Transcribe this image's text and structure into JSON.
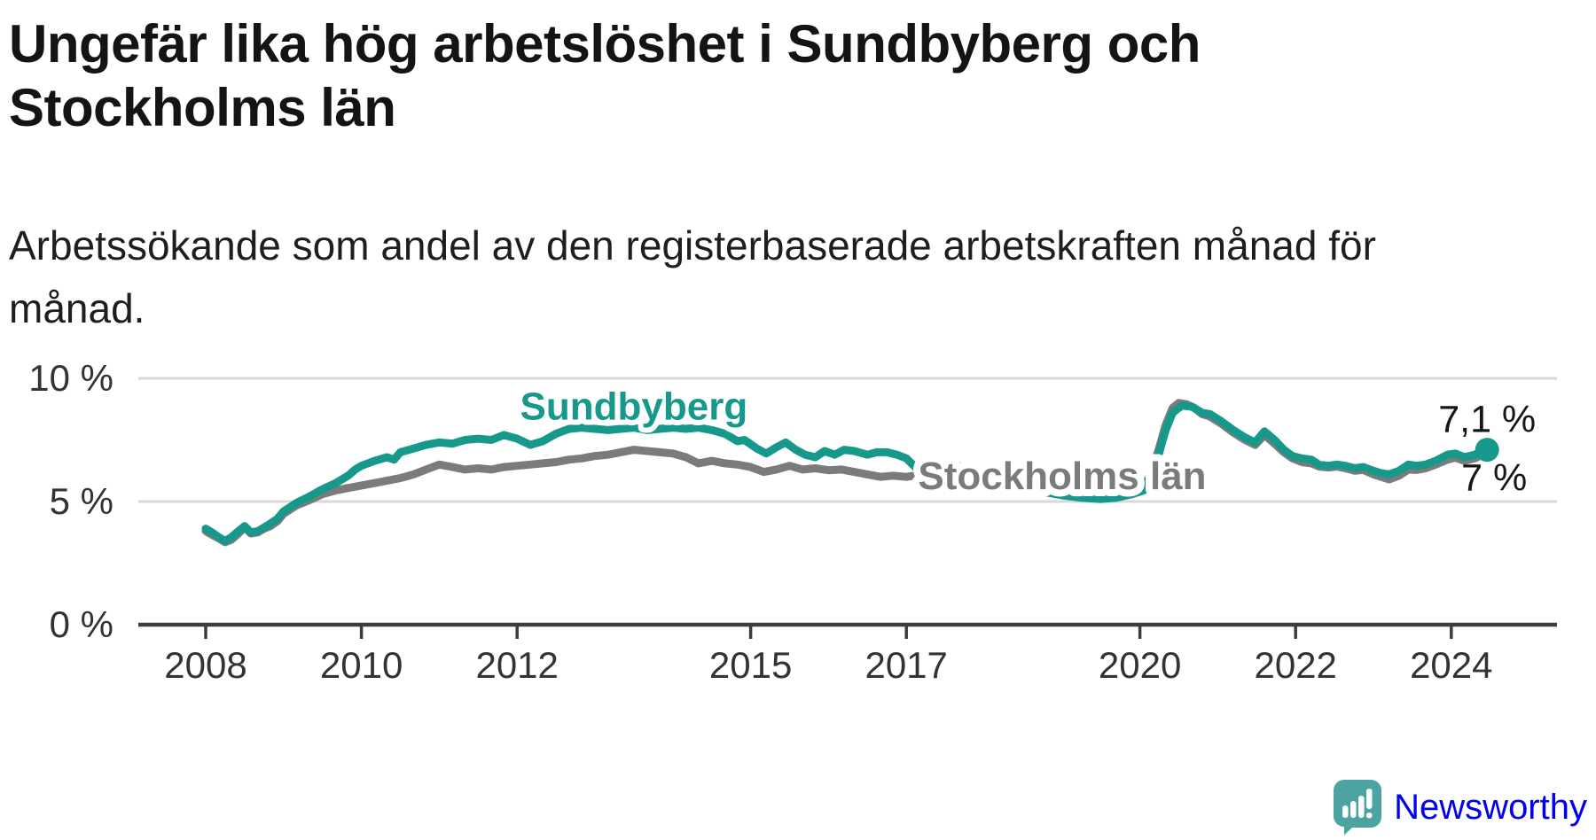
{
  "header": {
    "title": "Ungefär lika hög arbetslöshet i Sundbyberg och Stockholms län",
    "subtitle": "Arbetssökande som andel av den registerbaserade arbetskraften månad för månad."
  },
  "footer": {
    "brand": "Newsworthy",
    "icon": "speech-bubble-bar-chart"
  },
  "colors": {
    "sundbyberg": "#16998a",
    "stockholm": "#7b7b7b",
    "grid": "#d9d9d9",
    "axis": "#3c3c3c",
    "tick_text": "#333333",
    "value_text": "#161616",
    "logo": "#4ba3a2"
  },
  "chart_data": {
    "type": "line",
    "title": "Ungefär lika hög arbetslöshet i Sundbyberg och Stockholms län",
    "subtitle": "Arbetssökande som andel av den registerbaserade arbetskraften månad för månad.",
    "unit": "%",
    "granularity": "monthly",
    "xlim": [
      2007.1,
      2025.4
    ],
    "ylim": [
      0,
      10
    ],
    "grid": "horizontal",
    "legend_position": "inline-labels",
    "x_ticks": [
      {
        "year": 2008,
        "label": "2008"
      },
      {
        "year": 2010,
        "label": "2010"
      },
      {
        "year": 2012,
        "label": "2012"
      },
      {
        "year": 2015,
        "label": "2015"
      },
      {
        "year": 2017,
        "label": "2017"
      },
      {
        "year": 2020,
        "label": "2020"
      },
      {
        "year": 2022,
        "label": "2022"
      },
      {
        "year": 2024,
        "label": "2024"
      }
    ],
    "y_ticks": [
      {
        "value": 0,
        "label": "0 %"
      },
      {
        "value": 5,
        "label": "5 %"
      },
      {
        "value": 10,
        "label": "10 %"
      }
    ],
    "series": [
      {
        "name": "Stockholms län",
        "color_key": "stockholm",
        "label": {
          "text": "Stockholms län",
          "t": 2017.15,
          "v": 5.5,
          "anchor": "start",
          "halo": 16
        },
        "end_label": {
          "text": "7 %",
          "dx": 8,
          "dy": 43,
          "anchor": "middle"
        },
        "end_dot": false,
        "points": [
          [
            2008.0,
            3.8
          ],
          [
            2008.08,
            3.65
          ],
          [
            2008.17,
            3.5
          ],
          [
            2008.25,
            3.35
          ],
          [
            2008.33,
            3.45
          ],
          [
            2008.42,
            3.7
          ],
          [
            2008.5,
            3.95
          ],
          [
            2008.58,
            3.7
          ],
          [
            2008.67,
            3.75
          ],
          [
            2008.75,
            3.9
          ],
          [
            2008.83,
            4.0
          ],
          [
            2008.92,
            4.2
          ],
          [
            2009.0,
            4.5
          ],
          [
            2009.17,
            4.85
          ],
          [
            2009.33,
            5.05
          ],
          [
            2009.5,
            5.3
          ],
          [
            2009.67,
            5.45
          ],
          [
            2009.83,
            5.55
          ],
          [
            2010.0,
            5.65
          ],
          [
            2010.17,
            5.75
          ],
          [
            2010.33,
            5.85
          ],
          [
            2010.5,
            5.95
          ],
          [
            2010.67,
            6.1
          ],
          [
            2010.83,
            6.3
          ],
          [
            2011.0,
            6.5
          ],
          [
            2011.17,
            6.4
          ],
          [
            2011.33,
            6.3
          ],
          [
            2011.5,
            6.35
          ],
          [
            2011.67,
            6.3
          ],
          [
            2011.83,
            6.4
          ],
          [
            2012.0,
            6.45
          ],
          [
            2012.17,
            6.5
          ],
          [
            2012.33,
            6.55
          ],
          [
            2012.5,
            6.6
          ],
          [
            2012.67,
            6.7
          ],
          [
            2012.83,
            6.75
          ],
          [
            2013.0,
            6.85
          ],
          [
            2013.17,
            6.9
          ],
          [
            2013.33,
            7.0
          ],
          [
            2013.5,
            7.1
          ],
          [
            2013.67,
            7.05
          ],
          [
            2013.83,
            7.0
          ],
          [
            2014.0,
            6.95
          ],
          [
            2014.17,
            6.8
          ],
          [
            2014.33,
            6.55
          ],
          [
            2014.5,
            6.65
          ],
          [
            2014.67,
            6.55
          ],
          [
            2014.83,
            6.5
          ],
          [
            2015.0,
            6.4
          ],
          [
            2015.17,
            6.2
          ],
          [
            2015.33,
            6.3
          ],
          [
            2015.5,
            6.45
          ],
          [
            2015.67,
            6.3
          ],
          [
            2015.83,
            6.35
          ],
          [
            2016.0,
            6.27
          ],
          [
            2016.17,
            6.3
          ],
          [
            2016.33,
            6.2
          ],
          [
            2016.5,
            6.1
          ],
          [
            2016.67,
            6.0
          ],
          [
            2016.83,
            6.05
          ],
          [
            2017.0,
            6.0
          ],
          [
            2017.17,
            6.08
          ],
          [
            2017.33,
            6.0
          ],
          [
            2017.6,
            5.95
          ],
          [
            2017.8,
            5.9
          ],
          [
            2018.0,
            5.8
          ],
          [
            2018.25,
            5.65
          ],
          [
            2018.5,
            5.5
          ],
          [
            2018.75,
            5.4
          ],
          [
            2019.0,
            5.3
          ],
          [
            2019.25,
            5.25
          ],
          [
            2019.5,
            5.25
          ],
          [
            2019.7,
            5.3
          ],
          [
            2019.9,
            5.4
          ],
          [
            2020.05,
            5.55
          ],
          [
            2020.15,
            6.2
          ],
          [
            2020.25,
            7.2
          ],
          [
            2020.33,
            8.1
          ],
          [
            2020.42,
            8.8
          ],
          [
            2020.5,
            9.0
          ],
          [
            2020.6,
            8.95
          ],
          [
            2020.7,
            8.8
          ],
          [
            2020.8,
            8.55
          ],
          [
            2020.9,
            8.45
          ],
          [
            2021.05,
            8.15
          ],
          [
            2021.2,
            7.8
          ],
          [
            2021.35,
            7.5
          ],
          [
            2021.48,
            7.3
          ],
          [
            2021.6,
            7.7
          ],
          [
            2021.73,
            7.35
          ],
          [
            2021.85,
            7.0
          ],
          [
            2021.96,
            6.75
          ],
          [
            2022.08,
            6.6
          ],
          [
            2022.2,
            6.55
          ],
          [
            2022.3,
            6.42
          ],
          [
            2022.42,
            6.38
          ],
          [
            2022.53,
            6.42
          ],
          [
            2022.64,
            6.35
          ],
          [
            2022.76,
            6.25
          ],
          [
            2022.87,
            6.28
          ],
          [
            2023.0,
            6.1
          ],
          [
            2023.1,
            6.0
          ],
          [
            2023.2,
            5.9
          ],
          [
            2023.33,
            6.05
          ],
          [
            2023.45,
            6.3
          ],
          [
            2023.55,
            6.28
          ],
          [
            2023.67,
            6.35
          ],
          [
            2023.8,
            6.5
          ],
          [
            2023.95,
            6.7
          ],
          [
            2024.05,
            6.78
          ],
          [
            2024.17,
            6.65
          ],
          [
            2024.3,
            6.75
          ],
          [
            2024.46,
            7.0
          ]
        ]
      },
      {
        "name": "Sundbyberg",
        "color_key": "sundbyberg",
        "label": {
          "text": "Sundbyberg",
          "t": 2013.5,
          "v": 8.33,
          "anchor": "middle",
          "halo": 12
        },
        "end_label": {
          "text": "7,1 %",
          "dx": 0,
          "dy": -20,
          "anchor": "middle"
        },
        "end_dot": true,
        "points": [
          [
            2008.0,
            3.9
          ],
          [
            2008.08,
            3.75
          ],
          [
            2008.17,
            3.55
          ],
          [
            2008.25,
            3.4
          ],
          [
            2008.33,
            3.55
          ],
          [
            2008.42,
            3.8
          ],
          [
            2008.5,
            4.0
          ],
          [
            2008.58,
            3.75
          ],
          [
            2008.67,
            3.8
          ],
          [
            2008.75,
            3.95
          ],
          [
            2008.83,
            4.1
          ],
          [
            2008.92,
            4.3
          ],
          [
            2009.0,
            4.6
          ],
          [
            2009.17,
            4.95
          ],
          [
            2009.33,
            5.2
          ],
          [
            2009.5,
            5.5
          ],
          [
            2009.67,
            5.75
          ],
          [
            2009.83,
            6.05
          ],
          [
            2009.92,
            6.3
          ],
          [
            2010.0,
            6.45
          ],
          [
            2010.17,
            6.65
          ],
          [
            2010.33,
            6.8
          ],
          [
            2010.42,
            6.7
          ],
          [
            2010.5,
            7.0
          ],
          [
            2010.67,
            7.15
          ],
          [
            2010.83,
            7.3
          ],
          [
            2011.0,
            7.4
          ],
          [
            2011.17,
            7.35
          ],
          [
            2011.33,
            7.5
          ],
          [
            2011.5,
            7.55
          ],
          [
            2011.67,
            7.5
          ],
          [
            2011.83,
            7.7
          ],
          [
            2012.0,
            7.55
          ],
          [
            2012.17,
            7.3
          ],
          [
            2012.33,
            7.45
          ],
          [
            2012.5,
            7.75
          ],
          [
            2012.67,
            7.95
          ],
          [
            2012.83,
            8.0
          ],
          [
            2013.0,
            7.95
          ],
          [
            2013.17,
            7.9
          ],
          [
            2013.33,
            7.95
          ],
          [
            2013.5,
            8.0
          ],
          [
            2013.67,
            7.9
          ],
          [
            2013.83,
            7.95
          ],
          [
            2014.0,
            8.0
          ],
          [
            2014.17,
            7.95
          ],
          [
            2014.33,
            8.0
          ],
          [
            2014.5,
            7.9
          ],
          [
            2014.67,
            7.75
          ],
          [
            2014.83,
            7.45
          ],
          [
            2014.92,
            7.5
          ],
          [
            2015.08,
            7.15
          ],
          [
            2015.2,
            6.95
          ],
          [
            2015.33,
            7.2
          ],
          [
            2015.45,
            7.4
          ],
          [
            2015.58,
            7.1
          ],
          [
            2015.7,
            6.9
          ],
          [
            2015.83,
            6.8
          ],
          [
            2015.95,
            7.05
          ],
          [
            2016.08,
            6.9
          ],
          [
            2016.2,
            7.1
          ],
          [
            2016.33,
            7.05
          ],
          [
            2016.5,
            6.9
          ],
          [
            2016.62,
            7.0
          ],
          [
            2016.75,
            7.0
          ],
          [
            2016.88,
            6.9
          ],
          [
            2017.0,
            6.75
          ],
          [
            2017.13,
            6.35
          ],
          [
            2017.25,
            6.5
          ],
          [
            2017.4,
            6.45
          ],
          [
            2017.6,
            6.45
          ],
          [
            2017.8,
            6.4
          ],
          [
            2018.0,
            6.2
          ],
          [
            2018.25,
            5.9
          ],
          [
            2018.5,
            5.6
          ],
          [
            2018.75,
            5.4
          ],
          [
            2019.0,
            5.25
          ],
          [
            2019.25,
            5.15
          ],
          [
            2019.5,
            5.1
          ],
          [
            2019.7,
            5.15
          ],
          [
            2019.9,
            5.3
          ],
          [
            2020.05,
            5.45
          ],
          [
            2020.15,
            6.1
          ],
          [
            2020.25,
            7.0
          ],
          [
            2020.33,
            7.9
          ],
          [
            2020.42,
            8.6
          ],
          [
            2020.54,
            8.9
          ],
          [
            2020.67,
            8.85
          ],
          [
            2020.8,
            8.6
          ],
          [
            2020.9,
            8.55
          ],
          [
            2021.05,
            8.25
          ],
          [
            2021.2,
            7.9
          ],
          [
            2021.35,
            7.6
          ],
          [
            2021.48,
            7.4
          ],
          [
            2021.6,
            7.85
          ],
          [
            2021.73,
            7.5
          ],
          [
            2021.85,
            7.1
          ],
          [
            2021.96,
            6.85
          ],
          [
            2022.08,
            6.75
          ],
          [
            2022.2,
            6.7
          ],
          [
            2022.3,
            6.5
          ],
          [
            2022.42,
            6.45
          ],
          [
            2022.53,
            6.5
          ],
          [
            2022.64,
            6.45
          ],
          [
            2022.76,
            6.35
          ],
          [
            2022.87,
            6.4
          ],
          [
            2023.0,
            6.25
          ],
          [
            2023.1,
            6.15
          ],
          [
            2023.2,
            6.1
          ],
          [
            2023.33,
            6.25
          ],
          [
            2023.45,
            6.5
          ],
          [
            2023.55,
            6.45
          ],
          [
            2023.67,
            6.5
          ],
          [
            2023.8,
            6.65
          ],
          [
            2023.95,
            6.9
          ],
          [
            2024.05,
            6.95
          ],
          [
            2024.17,
            6.8
          ],
          [
            2024.3,
            6.9
          ],
          [
            2024.46,
            7.1
          ]
        ]
      }
    ]
  }
}
